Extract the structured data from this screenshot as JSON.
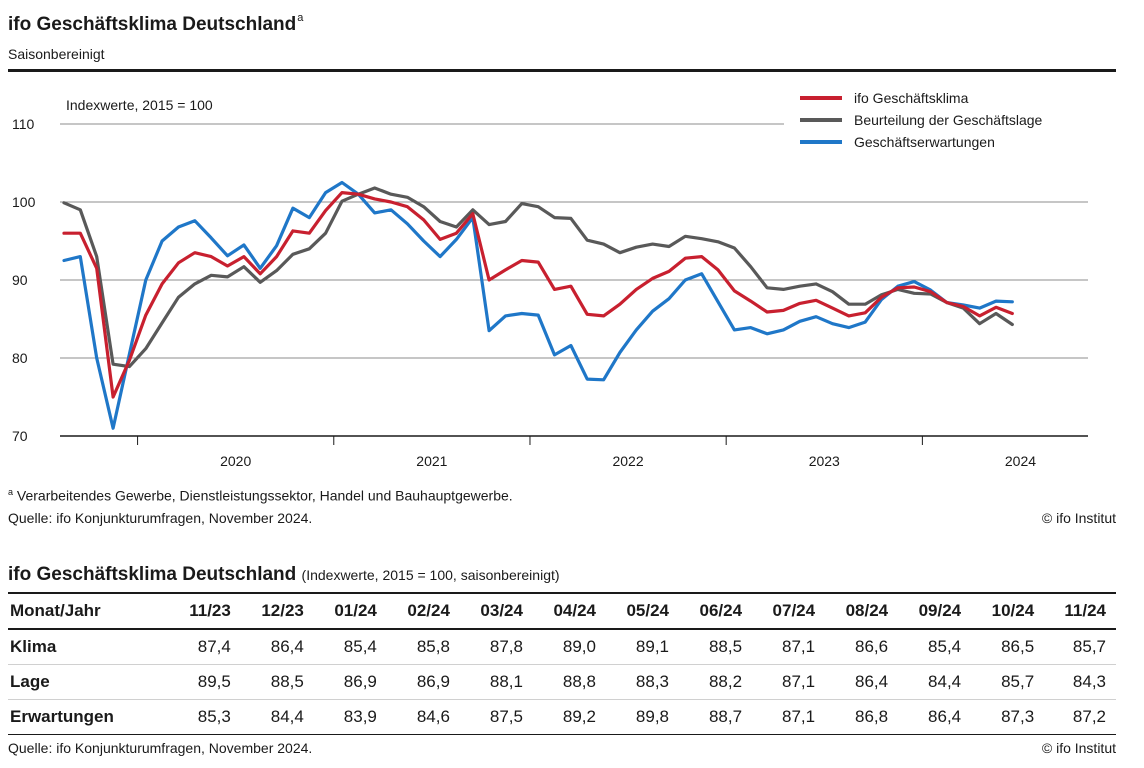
{
  "header": {
    "title": "ifo Geschäftsklima Deutschland",
    "title_marker": "a",
    "subtitle": "Saisonbereinigt"
  },
  "chart_data": {
    "type": "line",
    "unit_label": "Indexwerte, 2015 = 100",
    "ylim": [
      70,
      110
    ],
    "y_ticks": [
      "70",
      "80",
      "90",
      "100",
      "110"
    ],
    "x_ticks": [
      "2020",
      "2021",
      "2022",
      "2023",
      "2024"
    ],
    "grid": true,
    "legend_position": "top-right",
    "x_start": "2019-08",
    "x_end": "2024-11",
    "series": [
      {
        "name": "ifo Geschäftsklima",
        "color": "#c8202f",
        "values": [
          96.0,
          96.0,
          91.5,
          75.0,
          79.7,
          85.5,
          89.5,
          92.2,
          93.5,
          93.0,
          91.8,
          93.0,
          90.8,
          93.0,
          96.3,
          96.0,
          98.9,
          101.2,
          101.0,
          100.4,
          100.0,
          99.4,
          97.7,
          95.2,
          96.0,
          98.5,
          90.0,
          91.3,
          92.5,
          92.3,
          88.8,
          89.2,
          85.6,
          85.4,
          86.9,
          88.8,
          90.2,
          91.1,
          92.8,
          93.0,
          91.3,
          88.6,
          87.3,
          85.9,
          86.1,
          87.0,
          87.4,
          86.4,
          85.4,
          85.8,
          87.8,
          89.0,
          89.1,
          88.5,
          87.1,
          86.6,
          85.4,
          86.5,
          85.7
        ]
      },
      {
        "name": "Beurteilung der Geschäftslage",
        "color": "#595959",
        "values": [
          99.9,
          99.0,
          93.0,
          79.2,
          78.9,
          81.2,
          84.5,
          87.8,
          89.5,
          90.6,
          90.4,
          91.7,
          89.7,
          91.2,
          93.3,
          94.0,
          96.0,
          100.1,
          101.0,
          101.8,
          101.0,
          100.6,
          99.4,
          97.5,
          96.8,
          99.0,
          97.1,
          97.5,
          99.8,
          99.4,
          98.0,
          97.9,
          95.1,
          94.6,
          93.5,
          94.2,
          94.6,
          94.3,
          95.6,
          95.3,
          94.9,
          94.1,
          91.7,
          89.0,
          88.8,
          89.2,
          89.5,
          88.5,
          86.9,
          86.9,
          88.1,
          88.8,
          88.3,
          88.2,
          87.1,
          86.4,
          84.4,
          85.7,
          84.3
        ]
      },
      {
        "name": "Geschäftserwartungen",
        "color": "#1f77c8",
        "values": [
          92.5,
          93.0,
          80.0,
          71.0,
          80.5,
          90.0,
          95.0,
          96.8,
          97.6,
          95.4,
          93.1,
          94.5,
          91.5,
          94.4,
          99.2,
          98.0,
          101.2,
          102.5,
          101.0,
          98.6,
          99.0,
          97.2,
          95.0,
          93.0,
          95.2,
          98.0,
          83.5,
          85.4,
          85.7,
          85.5,
          80.4,
          81.6,
          77.3,
          77.2,
          80.7,
          83.6,
          86.0,
          87.6,
          90.0,
          90.8,
          87.2,
          83.6,
          83.9,
          83.1,
          83.6,
          84.7,
          85.3,
          84.4,
          83.9,
          84.6,
          87.5,
          89.2,
          89.8,
          88.7,
          87.1,
          86.8,
          86.4,
          87.3,
          87.2
        ]
      }
    ]
  },
  "notes": {
    "footnote_marker": "a",
    "footnote": "Verarbeitendes Gewerbe, Dienstleistungssektor, Handel und Bauhauptgewerbe.",
    "source": "Quelle: ifo Konjunkturumfragen, November 2024.",
    "copyright": "© ifo Institut"
  },
  "table": {
    "title": "ifo Geschäftsklima Deutschland",
    "subtitle": "(Indexwerte, 2015 = 100, saisonbereinigt)",
    "header_label": "Monat/Jahr",
    "columns": [
      "11/23",
      "12/23",
      "01/24",
      "02/24",
      "03/24",
      "04/24",
      "05/24",
      "06/24",
      "07/24",
      "08/24",
      "09/24",
      "10/24",
      "11/24"
    ],
    "rows": [
      {
        "label": "Klima",
        "values": [
          "87,4",
          "86,4",
          "85,4",
          "85,8",
          "87,8",
          "89,0",
          "89,1",
          "88,5",
          "87,1",
          "86,6",
          "85,4",
          "86,5",
          "85,7"
        ]
      },
      {
        "label": "Lage",
        "values": [
          "89,5",
          "88,5",
          "86,9",
          "86,9",
          "88,1",
          "88,8",
          "88,3",
          "88,2",
          "87,1",
          "86,4",
          "84,4",
          "85,7",
          "84,3"
        ]
      },
      {
        "label": "Erwartungen",
        "values": [
          "85,3",
          "84,4",
          "83,9",
          "84,6",
          "87,5",
          "89,2",
          "89,8",
          "88,7",
          "87,1",
          "86,8",
          "86,4",
          "87,3",
          "87,2"
        ]
      }
    ],
    "source": "Quelle: ifo Konjunkturumfragen, November 2024.",
    "copyright": "© ifo Institut"
  }
}
